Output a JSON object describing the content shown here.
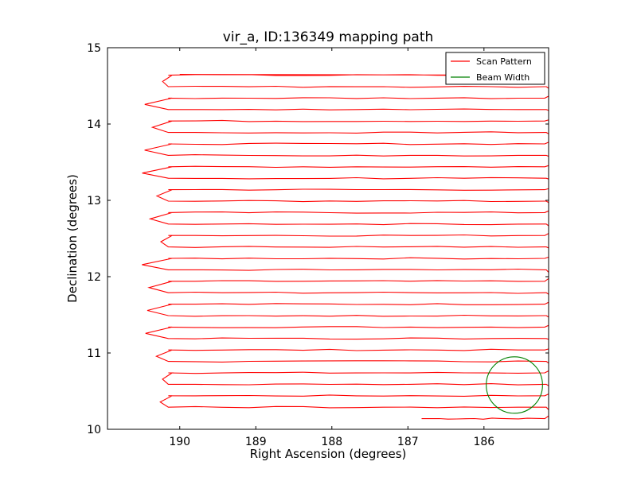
{
  "chart_data": {
    "type": "line",
    "title": "vir_a, ID:136349 mapping path",
    "xlabel": "Right Ascension (degrees)",
    "ylabel": "Declination (degrees)",
    "xlim": [
      190.95,
      185.15
    ],
    "ylim": [
      10,
      15
    ],
    "xticks": [
      190,
      189,
      188,
      187,
      186
    ],
    "yticks": [
      10,
      11,
      12,
      13,
      14,
      15
    ],
    "grid": false,
    "legend": {
      "placement": "top-right",
      "entries": [
        {
          "label": "Scan Pattern",
          "color": "#ff0000"
        },
        {
          "label": "Beam Width",
          "color": "#008000"
        }
      ]
    },
    "series": [
      {
        "name": "Scan Pattern",
        "color": "#ff0000",
        "scan": {
          "ra_start": 190.15,
          "ra_end": 185.2,
          "dec_start": 10.14,
          "dec_step": 0.15,
          "rows": 31,
          "ra_first": 186.82,
          "ra_last": 190.0,
          "dec_last": 14.65
        }
      },
      {
        "name": "Beam Width",
        "color": "#008000",
        "circle": {
          "ra": 185.6,
          "dec": 10.58,
          "radius": 0.37
        }
      }
    ]
  }
}
